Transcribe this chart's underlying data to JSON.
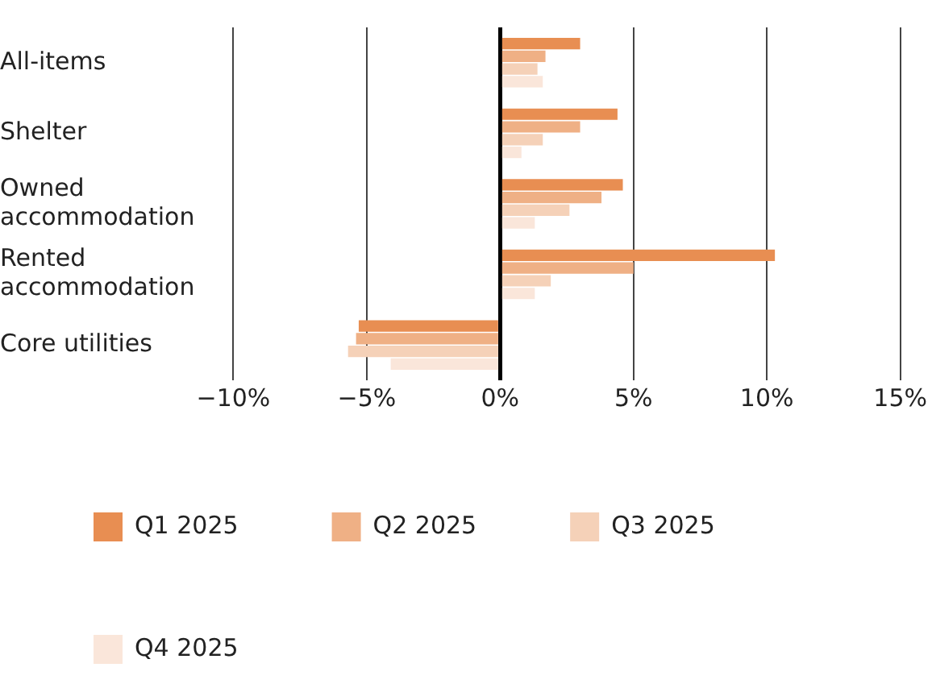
{
  "chart_data": {
    "type": "bar",
    "orientation": "horizontal",
    "categories": [
      "All-items",
      "Shelter",
      "Owned accommodation",
      "Rented accommodation",
      "Core utilities"
    ],
    "series": [
      {
        "name": "Q1 2025",
        "color": "#e88e52",
        "values": [
          3.0,
          4.4,
          4.6,
          10.3,
          -5.3
        ]
      },
      {
        "name": "Q2 2025",
        "color": "#efb085",
        "values": [
          1.7,
          3.0,
          3.8,
          5.0,
          -5.4
        ]
      },
      {
        "name": "Q3 2025",
        "color": "#f5d1b8",
        "values": [
          1.4,
          1.6,
          2.6,
          1.9,
          -5.7
        ]
      },
      {
        "name": "Q4 2025",
        "color": "#fae6da",
        "values": [
          1.6,
          0.8,
          1.3,
          1.3,
          -4.1
        ]
      }
    ],
    "xlim": [
      -10,
      15
    ],
    "xticks": [
      {
        "value": -10,
        "label": "−10%"
      },
      {
        "value": -5,
        "label": "−5%"
      },
      {
        "value": 0,
        "label": "0%"
      },
      {
        "value": 5,
        "label": "5%"
      },
      {
        "value": 10,
        "label": "10%"
      },
      {
        "value": 15,
        "label": "15%"
      }
    ],
    "grid": "x",
    "legend": "bottom"
  }
}
